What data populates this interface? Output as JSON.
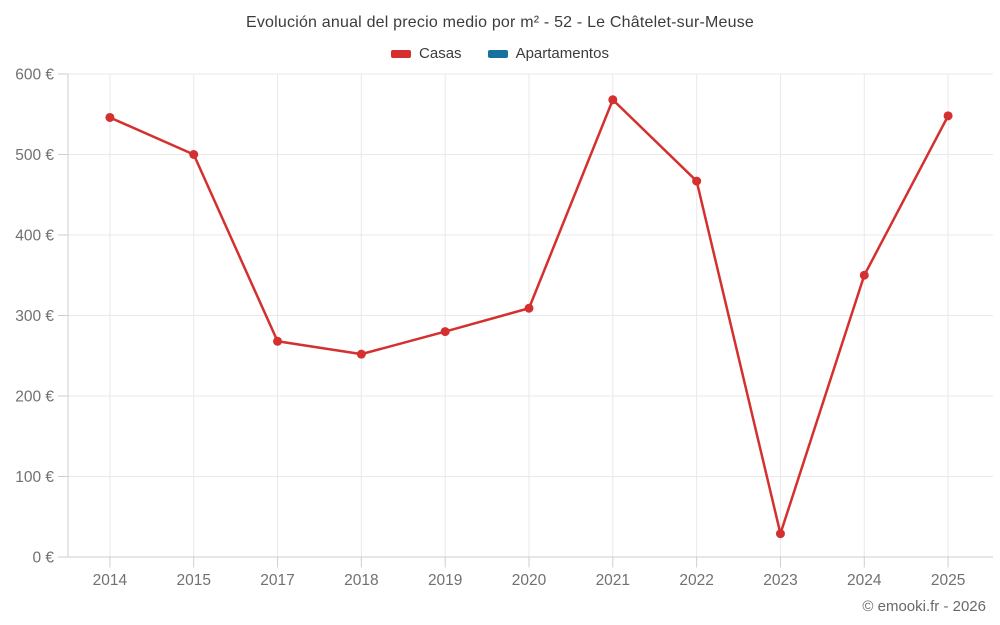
{
  "chart": {
    "footer_credit": "© emooki.fr - 2026"
  },
  "chart_data": {
    "type": "line",
    "title": "Evolución anual del precio medio por m² - 52 - Le Châtelet-sur-Meuse",
    "categories": [
      "2014",
      "2015",
      "2017",
      "2018",
      "2019",
      "2020",
      "2021",
      "2022",
      "2023",
      "2024",
      "2025"
    ],
    "series": [
      {
        "name": "Casas",
        "color": "#d3302f",
        "values": [
          546,
          500,
          268,
          252,
          280,
          309,
          568,
          467,
          29,
          350,
          548
        ]
      },
      {
        "name": "Apartamentos",
        "color": "#17719f",
        "values": []
      }
    ],
    "xlabel": "",
    "ylabel": "",
    "ylim": [
      0,
      600
    ],
    "y_ticks": [
      0,
      100,
      200,
      300,
      400,
      500,
      600
    ],
    "y_tick_labels": [
      "0 €",
      "100 €",
      "200 €",
      "300 €",
      "400 €",
      "500 €",
      "600 €"
    ],
    "unit": "€",
    "grid": true,
    "legend_position": "top",
    "colors": {
      "grid_line": "#e9e9e9",
      "axis_line": "#cfcfcf",
      "tick_label": "#717171",
      "title_text": "#3c3c3c",
      "footer_text": "#696969",
      "background": "#ffffff"
    }
  }
}
